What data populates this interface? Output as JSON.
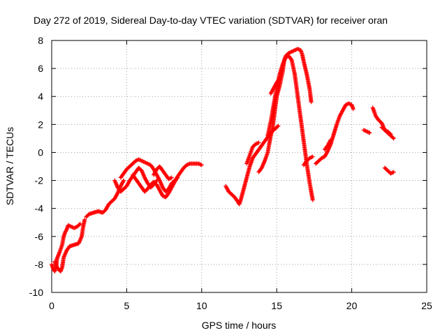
{
  "chart_data": {
    "type": "scatter",
    "title": "Day 272 of 2019, Sidereal Day-to-day VTEC variation (SDTVAR) for receiver oran",
    "xlabel": "GPS time / hours",
    "ylabel": "SDTVAR / TECUs",
    "xlim": [
      0,
      25
    ],
    "ylim": [
      -10,
      8
    ],
    "xticks": [
      0,
      5,
      10,
      15,
      20,
      25
    ],
    "yticks": [
      -10,
      -8,
      -6,
      -4,
      -2,
      0,
      2,
      4,
      6,
      8
    ],
    "grid": true,
    "marker": "plus",
    "color": "#ff0000",
    "segments": [
      [
        [
          0.0,
          -8.0
        ],
        [
          0.1,
          -8.3
        ],
        [
          0.2,
          -8.5
        ],
        [
          0.3,
          -8.2
        ],
        [
          0.35,
          -7.6
        ],
        [
          0.5,
          -7.2
        ],
        [
          0.7,
          -6.6
        ],
        [
          0.8,
          -6.0
        ],
        [
          0.9,
          -5.7
        ],
        [
          1.0,
          -5.5
        ],
        [
          1.1,
          -5.2
        ],
        [
          1.3,
          -5.3
        ],
        [
          1.5,
          -5.4
        ],
        [
          1.7,
          -5.3
        ],
        [
          1.9,
          -5.1
        ]
      ],
      [
        [
          0.2,
          -7.8
        ],
        [
          0.4,
          -8.3
        ],
        [
          0.6,
          -8.5
        ],
        [
          0.7,
          -8.2
        ],
        [
          0.8,
          -7.5
        ],
        [
          1.0,
          -7.0
        ],
        [
          1.2,
          -6.7
        ],
        [
          1.5,
          -6.6
        ],
        [
          1.8,
          -6.5
        ],
        [
          2.0,
          -6.0
        ],
        [
          2.1,
          -5.3
        ],
        [
          2.2,
          -4.8
        ]
      ],
      [
        [
          2.3,
          -4.6
        ],
        [
          2.5,
          -4.4
        ],
        [
          2.8,
          -4.3
        ],
        [
          3.1,
          -4.2
        ],
        [
          3.4,
          -4.3
        ],
        [
          3.6,
          -4.1
        ],
        [
          3.8,
          -3.7
        ],
        [
          4.0,
          -3.5
        ],
        [
          4.2,
          -3.3
        ],
        [
          4.4,
          -2.9
        ],
        [
          4.6,
          -2.4
        ],
        [
          4.8,
          -2.0
        ]
      ],
      [
        [
          4.2,
          -2.0
        ],
        [
          4.4,
          -2.5
        ],
        [
          4.6,
          -2.8
        ],
        [
          4.8,
          -2.6
        ],
        [
          5.0,
          -2.4
        ],
        [
          5.2,
          -2.0
        ],
        [
          5.4,
          -1.7
        ],
        [
          5.6,
          -1.4
        ],
        [
          5.8,
          -1.1
        ],
        [
          6.0,
          -1.3
        ],
        [
          6.2,
          -1.8
        ],
        [
          6.4,
          -2.2
        ],
        [
          6.6,
          -2.5
        ],
        [
          6.8,
          -2.3
        ],
        [
          7.0,
          -2.0
        ]
      ],
      [
        [
          4.6,
          -1.8
        ],
        [
          4.8,
          -1.5
        ],
        [
          5.0,
          -1.2
        ],
        [
          5.2,
          -1.0
        ],
        [
          5.4,
          -0.8
        ],
        [
          5.6,
          -0.6
        ],
        [
          5.8,
          -0.5
        ],
        [
          6.0,
          -0.6
        ],
        [
          6.2,
          -0.7
        ],
        [
          6.4,
          -0.8
        ],
        [
          6.6,
          -0.9
        ],
        [
          6.8,
          -1.2
        ],
        [
          7.0,
          -1.6
        ],
        [
          7.2,
          -2.0
        ],
        [
          7.4,
          -2.5
        ],
        [
          7.6,
          -2.8
        ],
        [
          7.8,
          -2.6
        ],
        [
          8.0,
          -2.2
        ],
        [
          8.2,
          -2.0
        ],
        [
          8.4,
          -1.8
        ]
      ],
      [
        [
          5.4,
          -1.6
        ],
        [
          5.6,
          -1.9
        ],
        [
          5.8,
          -2.2
        ],
        [
          6.0,
          -2.5
        ],
        [
          6.2,
          -2.8
        ],
        [
          6.4,
          -2.6
        ],
        [
          6.6,
          -2.3
        ],
        [
          6.8,
          -2.1
        ],
        [
          7.0,
          -2.3
        ],
        [
          7.2,
          -2.7
        ],
        [
          7.4,
          -3.1
        ],
        [
          7.6,
          -3.2
        ],
        [
          7.8,
          -2.9
        ],
        [
          8.0,
          -2.5
        ],
        [
          8.2,
          -2.1
        ],
        [
          8.4,
          -1.7
        ],
        [
          8.6,
          -1.4
        ],
        [
          8.8,
          -1.1
        ],
        [
          9.0,
          -0.9
        ],
        [
          9.2,
          -0.8
        ],
        [
          9.4,
          -0.8
        ],
        [
          9.6,
          -0.8
        ],
        [
          9.8,
          -0.8
        ],
        [
          10.0,
          -0.9
        ]
      ],
      [
        [
          6.8,
          -1.6
        ],
        [
          7.0,
          -1.2
        ],
        [
          7.2,
          -1.0
        ],
        [
          7.4,
          -1.3
        ],
        [
          7.6,
          -1.6
        ],
        [
          7.8,
          -1.9
        ],
        [
          8.0,
          -1.8
        ]
      ],
      [
        [
          11.6,
          -2.4
        ],
        [
          11.8,
          -2.8
        ],
        [
          12.0,
          -3.0
        ],
        [
          12.2,
          -3.2
        ],
        [
          12.4,
          -3.5
        ],
        [
          12.5,
          -3.7
        ],
        [
          12.6,
          -3.4
        ],
        [
          12.8,
          -2.6
        ],
        [
          13.0,
          -1.8
        ],
        [
          13.2,
          -1.0
        ],
        [
          13.4,
          -0.4
        ],
        [
          13.6,
          -0.1
        ],
        [
          13.8,
          0.2
        ],
        [
          14.0,
          0.5
        ],
        [
          14.2,
          0.8
        ],
        [
          14.4,
          1.1
        ],
        [
          14.6,
          1.4
        ],
        [
          14.8,
          1.6
        ],
        [
          15.0,
          1.8
        ],
        [
          15.1,
          1.9
        ]
      ],
      [
        [
          13.0,
          -0.8
        ],
        [
          13.2,
          -0.2
        ],
        [
          13.4,
          0.4
        ],
        [
          13.6,
          0.6
        ],
        [
          13.8,
          0.7
        ]
      ],
      [
        [
          13.8,
          -1.4
        ],
        [
          14.0,
          -1.1
        ],
        [
          14.2,
          -0.6
        ],
        [
          14.4,
          0.0
        ],
        [
          14.5,
          0.6
        ],
        [
          14.6,
          1.2
        ],
        [
          14.7,
          1.6
        ],
        [
          14.8,
          2.4
        ],
        [
          14.9,
          3.2
        ],
        [
          15.0,
          4.0
        ],
        [
          15.2,
          4.8
        ],
        [
          15.4,
          5.8
        ],
        [
          15.5,
          6.6
        ],
        [
          15.6,
          6.9
        ],
        [
          15.8,
          7.1
        ],
        [
          16.0,
          7.2
        ],
        [
          16.2,
          7.3
        ],
        [
          16.4,
          7.4
        ],
        [
          16.6,
          7.3
        ],
        [
          16.7,
          7.0
        ],
        [
          16.8,
          6.5
        ],
        [
          17.0,
          5.6
        ],
        [
          17.2,
          4.5
        ],
        [
          17.3,
          3.6
        ]
      ],
      [
        [
          14.4,
          1.2
        ],
        [
          14.6,
          2.2
        ],
        [
          14.8,
          3.4
        ],
        [
          15.0,
          4.6
        ],
        [
          15.2,
          5.6
        ],
        [
          15.4,
          6.3
        ],
        [
          15.6,
          6.8
        ],
        [
          15.8,
          6.9
        ],
        [
          16.0,
          6.6
        ],
        [
          16.2,
          5.6
        ],
        [
          16.4,
          4.0
        ],
        [
          16.6,
          2.4
        ],
        [
          16.8,
          0.8
        ],
        [
          17.0,
          -0.8
        ],
        [
          17.2,
          -2.2
        ],
        [
          17.4,
          -3.4
        ]
      ],
      [
        [
          14.6,
          4.2
        ],
        [
          14.8,
          4.6
        ],
        [
          15.0,
          5.0
        ],
        [
          15.2,
          5.3
        ]
      ],
      [
        [
          16.8,
          -0.9
        ],
        [
          17.0,
          -0.6
        ],
        [
          17.2,
          -0.4
        ],
        [
          17.4,
          -0.3
        ]
      ],
      [
        [
          17.6,
          -0.8
        ],
        [
          17.8,
          -0.6
        ],
        [
          18.0,
          -0.4
        ],
        [
          18.2,
          -0.3
        ],
        [
          18.4,
          0.1
        ],
        [
          18.6,
          0.6
        ],
        [
          18.8,
          1.3
        ],
        [
          19.0,
          2.0
        ],
        [
          19.2,
          2.6
        ],
        [
          19.4,
          3.0
        ],
        [
          19.6,
          3.4
        ],
        [
          19.8,
          3.5
        ],
        [
          20.0,
          3.4
        ],
        [
          20.1,
          3.1
        ]
      ],
      [
        [
          18.2,
          0.2
        ],
        [
          18.4,
          0.5
        ],
        [
          18.6,
          0.9
        ]
      ],
      [
        [
          20.8,
          1.6
        ],
        [
          21.0,
          1.5
        ],
        [
          21.2,
          1.4
        ]
      ],
      [
        [
          21.4,
          3.2
        ],
        [
          21.6,
          2.6
        ],
        [
          21.8,
          2.3
        ],
        [
          22.0,
          2.1
        ],
        [
          22.2,
          1.6
        ],
        [
          22.4,
          1.4
        ],
        [
          22.6,
          1.2
        ],
        [
          22.8,
          1.0
        ]
      ],
      [
        [
          22.0,
          1.8
        ],
        [
          22.2,
          1.6
        ],
        [
          22.4,
          1.5
        ],
        [
          22.6,
          1.3
        ]
      ],
      [
        [
          22.2,
          -1.1
        ],
        [
          22.4,
          -1.3
        ],
        [
          22.6,
          -1.5
        ],
        [
          22.8,
          -1.4
        ]
      ]
    ]
  }
}
